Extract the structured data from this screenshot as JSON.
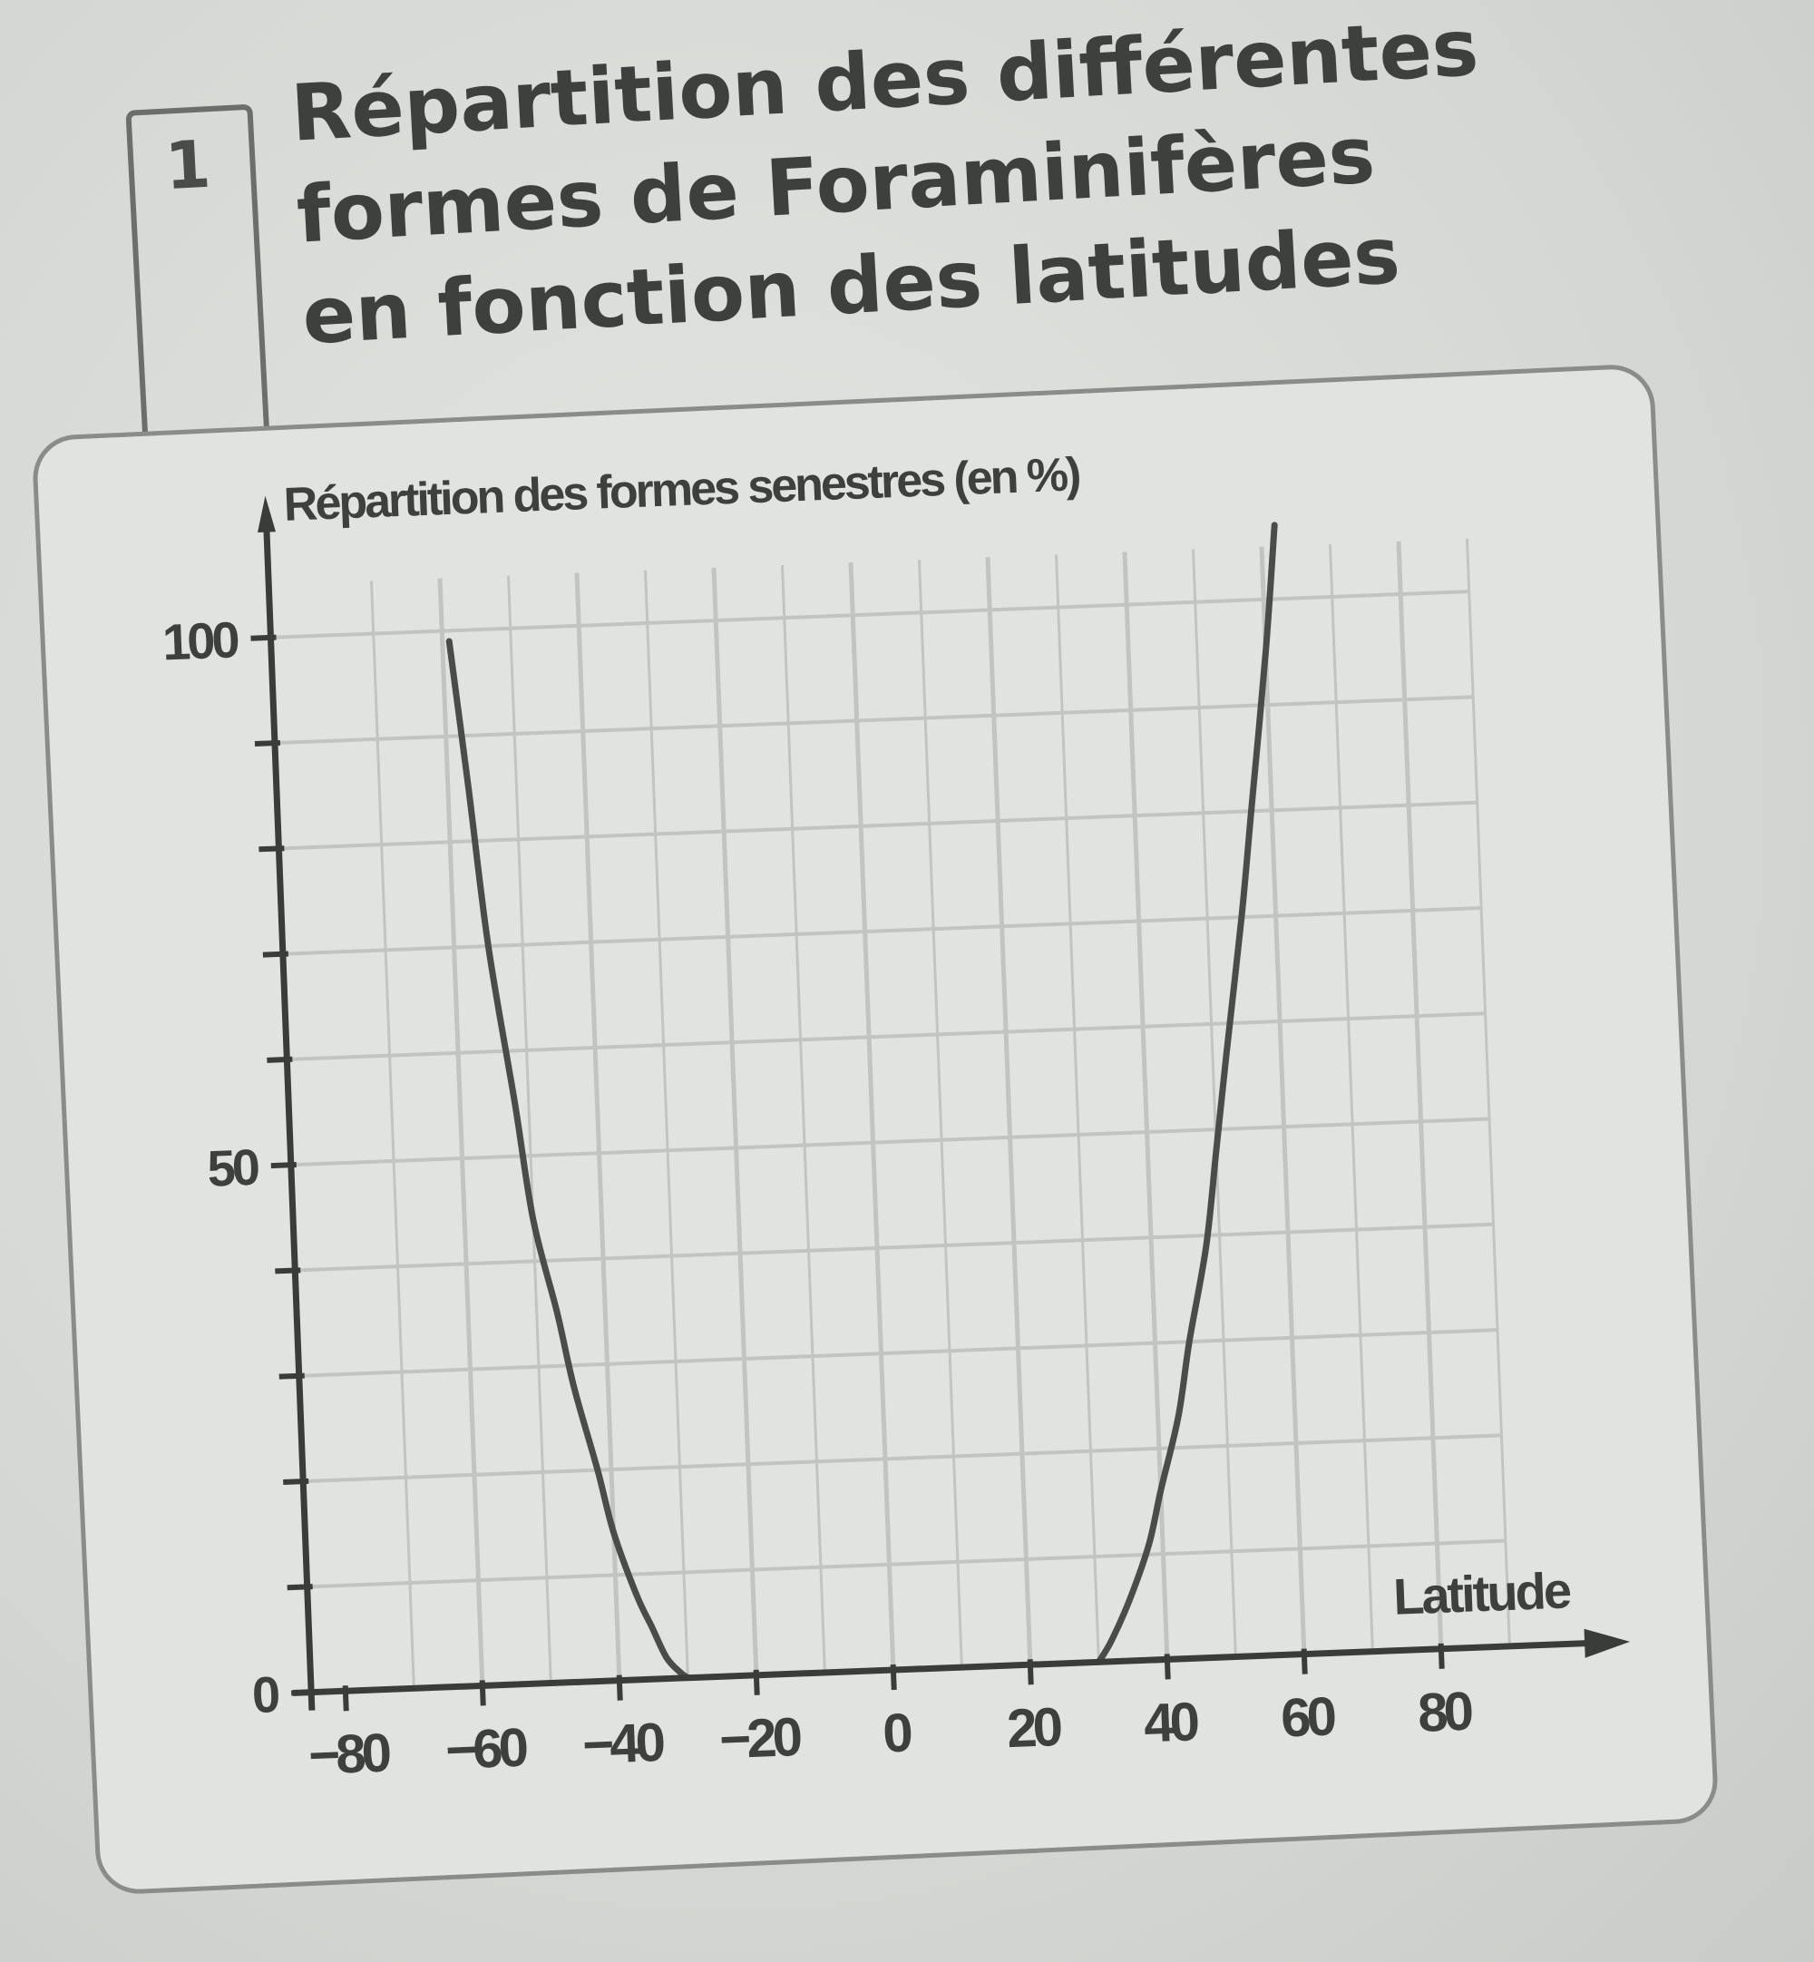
{
  "document": {
    "number": "1",
    "title_lines": [
      "Répartition des différentes",
      "formes de Foraminifères",
      "en fonction des latitudes"
    ]
  },
  "colors": {
    "background": "#d9dbd8",
    "panel": "#e1e3e0",
    "grid": "#c2c4c1",
    "axis": "#3a3c3a",
    "curve": "#4a4c4a",
    "text": "#3e403e"
  },
  "chart_data": {
    "type": "line",
    "ylabel": "Répartition des formes senestres (en %)",
    "xlabel": "Latitude",
    "xlim": [
      -85,
      95
    ],
    "ylim": [
      0,
      110
    ],
    "x_ticks": [
      -80,
      -60,
      -40,
      -20,
      0,
      20,
      40,
      60,
      80
    ],
    "x_tick_labels": [
      "−80",
      "−60",
      "−40",
      "−20",
      "0",
      "20",
      "40",
      "60",
      "80"
    ],
    "y_ticks": [
      0,
      10,
      20,
      30,
      40,
      50,
      60,
      70,
      80,
      90,
      100
    ],
    "y_tick_labels": [
      "0",
      "",
      "",
      "",
      "",
      "50",
      "",
      "",
      "",
      "",
      "100"
    ],
    "grid": true,
    "series": [
      {
        "x": [
          -59,
          -57,
          -55,
          -52,
          -50,
          -47,
          -45,
          -42,
          -40,
          -37,
          -35,
          -33,
          -31,
          -30
        ],
        "y": [
          99,
          85,
          70,
          55,
          44,
          35,
          28,
          20,
          14,
          8,
          5,
          2,
          0.5,
          0
        ]
      },
      {
        "x": [
          30,
          32,
          35,
          38,
          40,
          43,
          45,
          48,
          50,
          52,
          55,
          57,
          60,
          62
        ],
        "y": [
          0,
          2,
          6,
          11,
          16,
          23,
          30,
          39,
          48,
          57,
          70,
          80,
          95,
          107
        ]
      }
    ]
  }
}
